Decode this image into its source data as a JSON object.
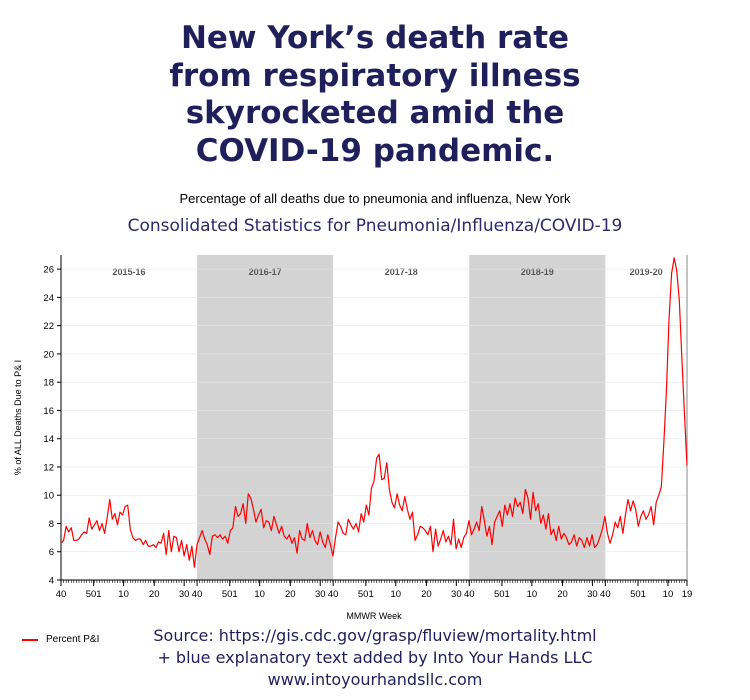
{
  "headline": {
    "lines": [
      "New York’s death rate",
      "from respiratory illness",
      "skyrocketed amid the",
      "COVID-19 pandemic."
    ]
  },
  "subtitle": "Percentage of all deaths due to pneumonia and influenza, New York",
  "chart_title": "Consolidated Statistics for Pneumonia/Influenza/COVID-19",
  "source": {
    "lines": [
      "Source: https://gis.cdc.gov/grasp/fluview/mortality.html",
      "+ blue explanatory text added by Into Your Hands LLC",
      "www.intoyourhandsllc.com"
    ]
  },
  "colors": {
    "line": "#ff0000",
    "shade": "#d3d3d3",
    "title": "#1f1f5c"
  },
  "chart_data": {
    "type": "line",
    "xlabel": "MMWR Week",
    "ylabel": "% of ALL Deaths Due to P& I",
    "ylim": [
      4,
      27
    ],
    "yticks": [
      4,
      6,
      8,
      10,
      12,
      14,
      16,
      18,
      20,
      22,
      24,
      26
    ],
    "xtick_labels": [
      "40",
      "501",
      "10",
      "20",
      "30",
      "40",
      "501",
      "10",
      "20",
      "30",
      "40",
      "501",
      "10",
      "20",
      "30",
      "40",
      "501",
      "10",
      "20",
      "30",
      "40",
      "501",
      "10",
      "19"
    ],
    "seasons": [
      {
        "label": "2015-16",
        "shaded": false
      },
      {
        "label": "2016-17",
        "shaded": true
      },
      {
        "label": "2017-18",
        "shaded": false
      },
      {
        "label": "2018-19",
        "shaded": true
      },
      {
        "label": "2019-20",
        "shaded": false
      }
    ],
    "grid": true,
    "legend": {
      "position": "bottom-left",
      "entries": [
        "Percent P&I"
      ]
    },
    "series": [
      {
        "name": "Percent P&I",
        "values": [
          6.6,
          6.8,
          7.8,
          7.4,
          7.7,
          6.8,
          6.8,
          6.9,
          7.2,
          7.4,
          7.3,
          8.4,
          7.6,
          7.9,
          8.2,
          7.5,
          8.0,
          7.3,
          8.4,
          9.7,
          8.3,
          8.7,
          7.9,
          8.8,
          8.6,
          9.2,
          9.3,
          7.6,
          7.0,
          6.8,
          6.9,
          6.9,
          6.5,
          6.8,
          6.4,
          6.4,
          6.5,
          6.3,
          6.7,
          6.6,
          7.3,
          5.8,
          7.5,
          6.0,
          7.1,
          7.0,
          6.0,
          6.8,
          5.7,
          6.5,
          5.4,
          6.4,
          4.9,
          6.5,
          7.0,
          7.5,
          6.9,
          6.5,
          5.8,
          7.1,
          7.2,
          7.0,
          7.2,
          6.9,
          7.1,
          6.6,
          7.5,
          7.7,
          9.2,
          8.5,
          8.7,
          9.4,
          8.0,
          10.1,
          9.8,
          9.0,
          8.1,
          8.6,
          9.0,
          7.7,
          8.2,
          8.1,
          7.5,
          8.5,
          7.9,
          7.3,
          7.8,
          7.1,
          6.9,
          7.2,
          6.6,
          7.0,
          5.9,
          7.5,
          6.9,
          6.8,
          8.0,
          7.0,
          7.5,
          6.8,
          6.5,
          7.4,
          6.7,
          6.3,
          7.2,
          6.5,
          5.7,
          7.0,
          8.1,
          7.8,
          7.3,
          7.2,
          8.3,
          7.9,
          7.6,
          8.0,
          7.4,
          8.7,
          8.1,
          9.3,
          8.6,
          10.5,
          11.0,
          12.6,
          12.9,
          11.1,
          11.2,
          12.3,
          10.4,
          9.5,
          9.1,
          10.1,
          9.3,
          8.9,
          9.9,
          9.0,
          8.3,
          8.8,
          6.8,
          7.2,
          7.8,
          7.7,
          7.5,
          7.2,
          7.8,
          6.0,
          7.6,
          6.4,
          6.9,
          7.5,
          6.7,
          7.1,
          6.5,
          8.3,
          6.2,
          6.9,
          6.3,
          7.0,
          7.3,
          8.2,
          7.2,
          7.6,
          8.1,
          7.5,
          9.2,
          8.2,
          7.1,
          7.8,
          6.5,
          8.1,
          8.5,
          8.9,
          7.8,
          9.3,
          8.6,
          9.4,
          8.5,
          9.8,
          9.2,
          9.5,
          8.7,
          10.4,
          9.8,
          8.3,
          10.2,
          8.9,
          9.4,
          8.0,
          8.6,
          7.6,
          8.7,
          7.2,
          7.6,
          6.8,
          7.8,
          6.9,
          7.3,
          7.0,
          6.5,
          6.7,
          7.2,
          6.4,
          7.0,
          6.8,
          6.3,
          7.0,
          6.4,
          7.2,
          6.3,
          6.5,
          7.0,
          7.6,
          8.5,
          7.3,
          6.6,
          7.2,
          8.1,
          7.7,
          8.5,
          7.3,
          8.6,
          9.7,
          8.9,
          9.6,
          9.0,
          7.8,
          8.5,
          8.9,
          8.3,
          8.6,
          9.2,
          7.9,
          9.5,
          10.0,
          10.6,
          13.8,
          17.5,
          22.5,
          25.7,
          26.8,
          25.9,
          23.8,
          19.7,
          15.8,
          12.1
        ]
      }
    ]
  }
}
